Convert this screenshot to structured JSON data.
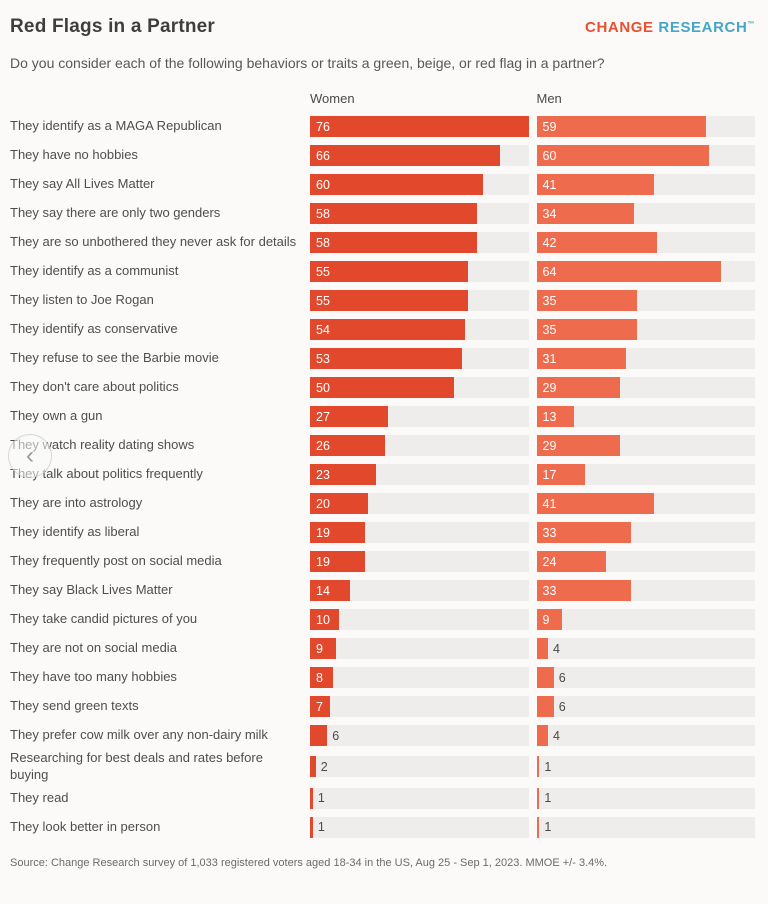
{
  "header": {
    "title": "Red Flags in a Partner",
    "brand": {
      "part1": "CHANGE",
      "part2": " RESEARCH",
      "tm": "™",
      "color1": "#e8502f",
      "color2": "#45a6c8"
    },
    "subtitle": "Do you consider each of the following behaviors or traits a green, beige, or red flag in a partner?"
  },
  "columns": {
    "women": "Women",
    "men": "Men"
  },
  "chart_data": {
    "type": "bar",
    "orientation": "horizontal",
    "title": "Red Flags in a Partner",
    "xlabel": "",
    "ylabel": "",
    "xlim": [
      0,
      76
    ],
    "grid": false,
    "legend_position": "column-headers-top",
    "track_color": "#efedeb",
    "value_label_inside_threshold": 7,
    "categories": [
      "They identify as a MAGA Republican",
      "They have no hobbies",
      "They say All Lives Matter",
      "They say there are only two genders",
      "They are so unbothered they never ask for details",
      "They identify as a communist",
      "They listen to Joe Rogan",
      "They identify as conservative",
      "They refuse to see the Barbie movie",
      "They don't care about politics",
      "They own a gun",
      "They watch reality dating shows",
      "They talk about politics frequently",
      "They are into astrology",
      "They identify as liberal",
      "They frequently post on social media",
      "They say Black Lives Matter",
      "They take candid pictures of you",
      "They are not on social media",
      "They have too many hobbies",
      "They send green texts",
      "They prefer cow milk over any non-dairy milk",
      "Researching for best deals and rates before buying",
      "They read",
      "They look better in person"
    ],
    "series": [
      {
        "name": "Women",
        "color": "#e2492c",
        "values": [
          76,
          66,
          60,
          58,
          58,
          55,
          55,
          54,
          53,
          50,
          27,
          26,
          23,
          20,
          19,
          19,
          14,
          10,
          9,
          8,
          7,
          6,
          2,
          1,
          1
        ]
      },
      {
        "name": "Men",
        "color": "#ee6b4d",
        "values": [
          59,
          60,
          41,
          34,
          42,
          64,
          35,
          35,
          31,
          29,
          13,
          29,
          17,
          41,
          33,
          24,
          33,
          9,
          4,
          6,
          6,
          4,
          1,
          1,
          1
        ]
      }
    ]
  },
  "overlay": {
    "chevron": "‹"
  },
  "footer": {
    "source": "Source: Change Research survey of 1,033 registered voters aged 18-34 in the US, Aug 25 - Sep 1, 2023. MMOE +/- 3.4%."
  }
}
